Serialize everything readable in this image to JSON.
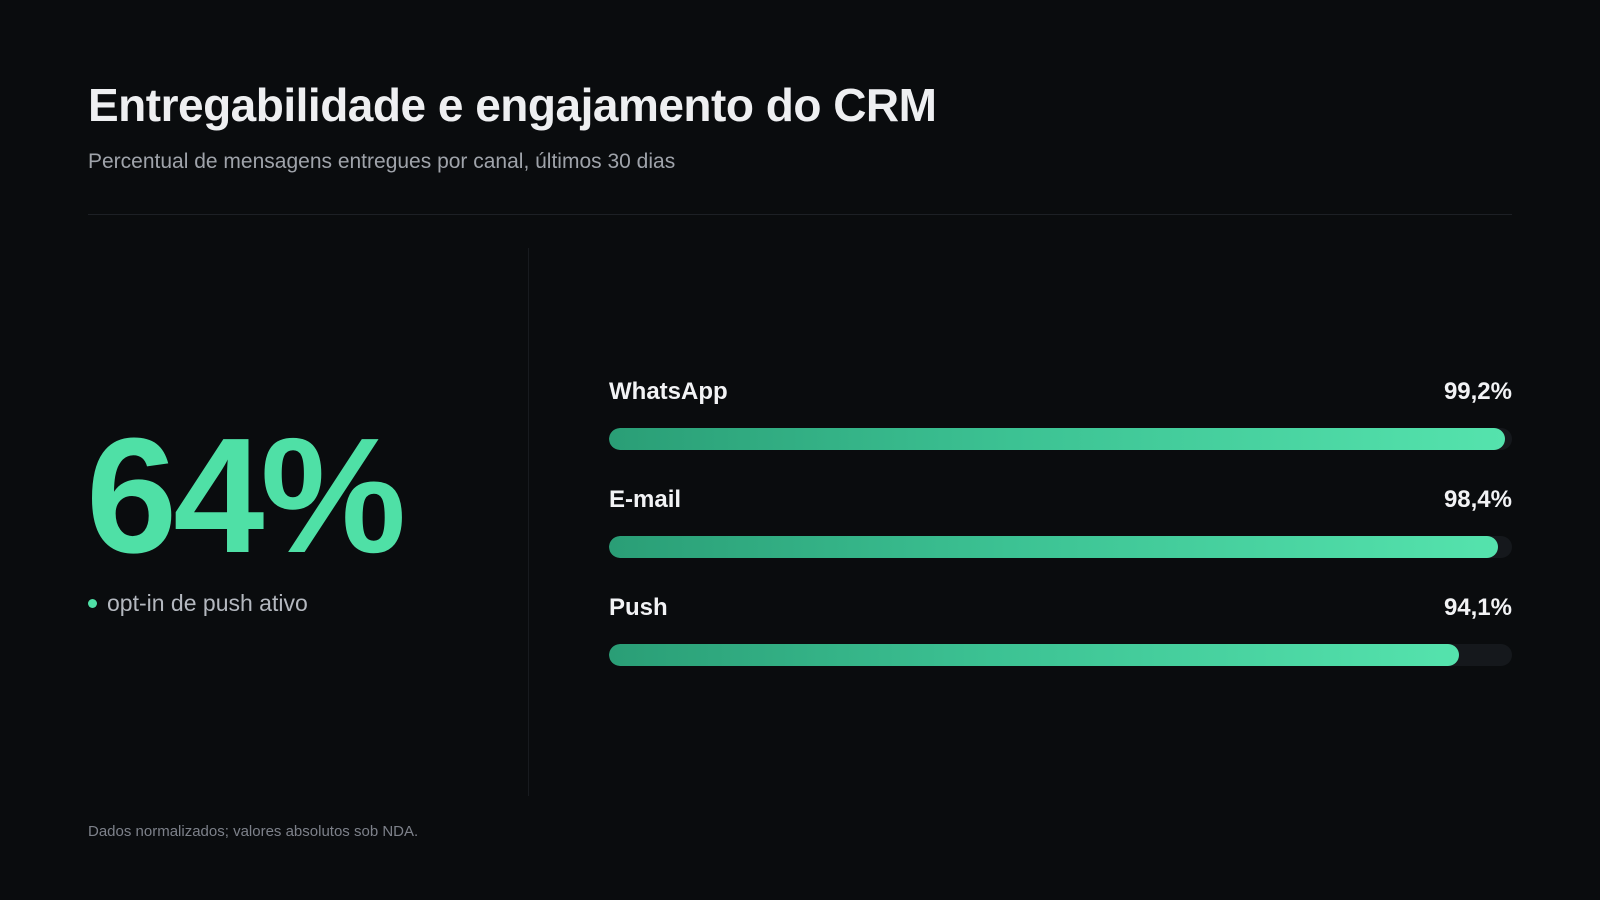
{
  "header": {
    "title": "Entregabilidade e engajamento do CRM",
    "subtitle": "Percentual de mensagens entregues por canal, últimos 30 dias"
  },
  "kpi": {
    "value": "64%",
    "label": "opt-in de push ativo"
  },
  "footer": {
    "note": "Dados normalizados; valores absolutos sob NDA."
  },
  "colors": {
    "background": "#0a0c0e",
    "accent": "#4fe0a6",
    "track": "#15181c"
  },
  "chart_data": {
    "type": "bar",
    "orientation": "horizontal",
    "categories": [
      "WhatsApp",
      "E-mail",
      "Push"
    ],
    "values": [
      99.2,
      98.4,
      94.1
    ],
    "value_labels": [
      "99,2%",
      "98,4%",
      "94,1%"
    ],
    "ylim": [
      0,
      100
    ],
    "grid": false
  }
}
